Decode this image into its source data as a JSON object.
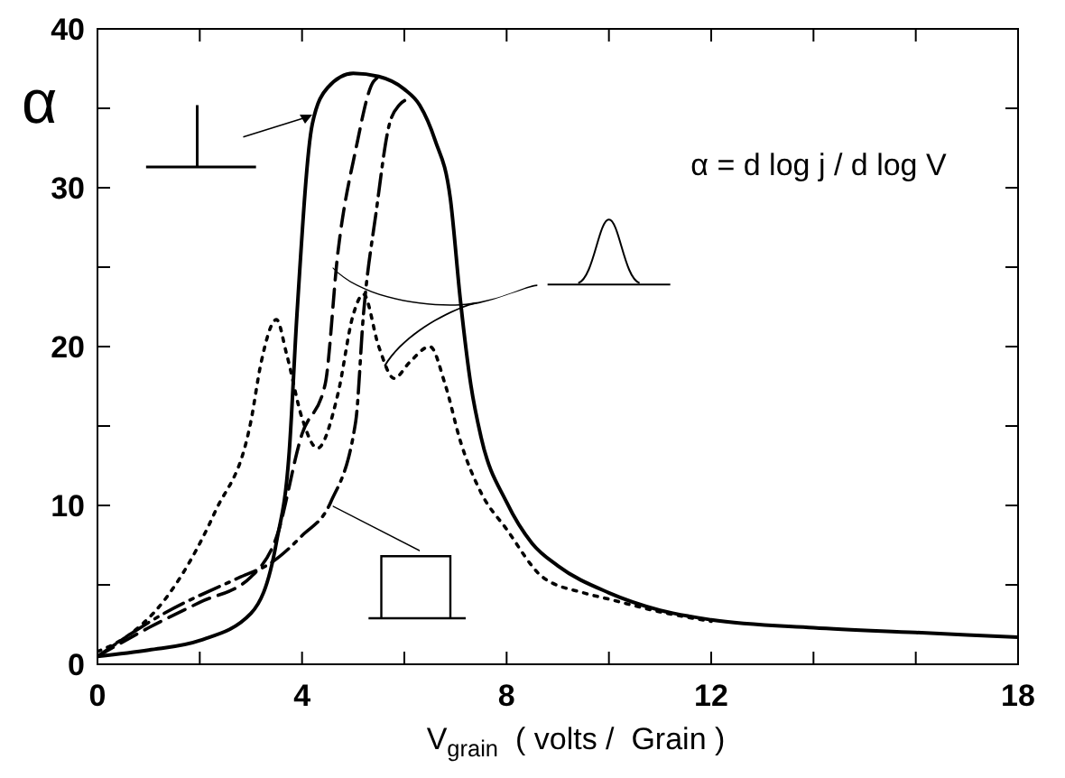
{
  "chart_data": {
    "type": "line",
    "xlabel": "V$_{grain}$  ( volts /  Grain )",
    "ylabel": "α",
    "annotations": [
      "α = d log j / d log V"
    ],
    "xlim": [
      0,
      18
    ],
    "ylim": [
      0,
      40
    ],
    "xticks": [
      0,
      {
        "value": 2,
        "label": null
      },
      4,
      {
        "value": 6,
        "label": null
      },
      8,
      {
        "value": 10,
        "label": null
      },
      12,
      {
        "value": 14,
        "label": null
      },
      {
        "value": 16,
        "label": null
      },
      18
    ],
    "yticks": [
      0,
      {
        "value": 5,
        "label": null
      },
      10,
      {
        "value": 15,
        "label": null
      },
      20,
      {
        "value": 25,
        "label": null
      },
      30,
      {
        "value": 35,
        "label": null
      },
      40
    ],
    "marker": "none",
    "series": [
      {
        "color": "#000000",
        "line_style": "solid",
        "x": [
          0,
          1,
          2,
          3,
          3.5,
          3.75,
          3.9,
          4.2,
          4.5,
          5,
          5.5,
          6,
          6.3,
          6.6,
          6.9,
          7.1,
          7.3,
          7.5,
          8,
          8.5,
          9,
          10,
          11,
          12,
          14,
          16,
          18
        ],
        "values": [
          0.5,
          0.9,
          1.5,
          3.2,
          7.7,
          13.4,
          22,
          34,
          36.3,
          37.2,
          37,
          36.2,
          35.2,
          33,
          29.3,
          22.8,
          17.6,
          14.3,
          10.2,
          7.6,
          6.2,
          4.5,
          3.4,
          2.8,
          2.3,
          2,
          1.7
        ]
      },
      {
        "color": "#000000",
        "line_style": "dashed",
        "x": [
          0,
          1,
          2,
          3,
          3.5,
          4,
          4.45,
          4.7,
          5.05,
          5.4,
          5.6
        ],
        "values": [
          0.5,
          2.3,
          3.9,
          5.5,
          8,
          14.5,
          17.6,
          25.9,
          32.4,
          36.7,
          37.1
        ]
      },
      {
        "color": "#000000",
        "line_style": "dashdot",
        "x": [
          0,
          1.3,
          2.8,
          3.4,
          4,
          4.56,
          5.05,
          5.2,
          5.45,
          5.7,
          5.9,
          6.1
        ],
        "values": [
          0.5,
          3.2,
          5.5,
          6.4,
          8.1,
          10.2,
          15.3,
          22,
          28.5,
          33.9,
          35.2,
          35.6
        ]
      },
      {
        "color": "#000000",
        "line_style": "dotted",
        "x": [
          0,
          0.5,
          1.3,
          2.3,
          3,
          3.2,
          3.5,
          3.7,
          4,
          4.3,
          4.7,
          5,
          5.2,
          5.5,
          5.8,
          6.1,
          6.5,
          6.8,
          7.1,
          7.5,
          8,
          8.7,
          9.5,
          10,
          11,
          12
        ],
        "values": [
          0.8,
          1.6,
          4,
          9.6,
          15.3,
          19,
          21.7,
          19.5,
          15.5,
          13.6,
          17,
          22,
          23.3,
          20,
          18,
          19,
          20,
          17.6,
          14,
          10.8,
          8.5,
          5.5,
          4.5,
          4.1,
          3.3,
          2.7
        ]
      }
    ]
  }
}
